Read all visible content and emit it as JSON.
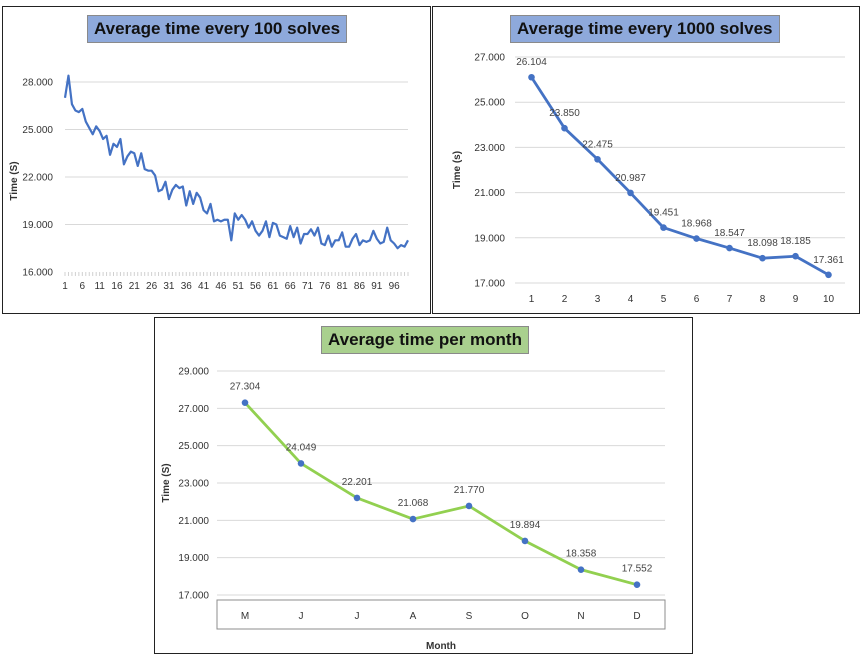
{
  "chart_data": [
    {
      "type": "line",
      "title": "Average time every 100 solves",
      "xlabel": "",
      "ylabel": "Time (S)",
      "ylim": [
        16,
        28.8
      ],
      "yticks": [
        "16.000",
        "19.000",
        "22.000",
        "25.000",
        "28.000"
      ],
      "xticks": [
        "1",
        "6",
        "11",
        "16",
        "21",
        "26",
        "31",
        "36",
        "41",
        "46",
        "51",
        "56",
        "61",
        "66",
        "71",
        "76",
        "81",
        "86",
        "91",
        "96"
      ],
      "color": "#4472c4",
      "x": [
        1,
        2,
        3,
        4,
        5,
        6,
        7,
        8,
        9,
        10,
        11,
        12,
        13,
        14,
        15,
        16,
        17,
        18,
        19,
        20,
        21,
        22,
        23,
        24,
        25,
        26,
        27,
        28,
        29,
        30,
        31,
        32,
        33,
        34,
        35,
        36,
        37,
        38,
        39,
        40,
        41,
        42,
        43,
        44,
        45,
        46,
        47,
        48,
        49,
        50,
        51,
        52,
        53,
        54,
        55,
        56,
        57,
        58,
        59,
        60,
        61,
        62,
        63,
        64,
        65,
        66,
        67,
        68,
        69,
        70,
        71,
        72,
        73,
        74,
        75,
        76,
        77,
        78,
        79,
        80,
        81,
        82,
        83,
        84,
        85,
        86,
        87,
        88,
        89,
        90,
        91,
        92,
        93,
        94,
        95,
        96,
        97,
        98,
        99,
        100
      ],
      "values": [
        27.0,
        28.4,
        26.6,
        26.2,
        26.1,
        26.3,
        25.5,
        25.1,
        24.7,
        25.2,
        24.9,
        24.4,
        24.6,
        23.4,
        24.1,
        23.9,
        24.4,
        22.8,
        23.3,
        23.6,
        23.5,
        22.7,
        23.5,
        22.5,
        22.4,
        22.4,
        22.1,
        21.1,
        21.2,
        21.7,
        20.6,
        21.2,
        21.5,
        21.3,
        21.4,
        20.2,
        21.1,
        20.3,
        21.0,
        20.7,
        19.9,
        19.7,
        20.3,
        19.2,
        19.3,
        19.2,
        19.3,
        19.3,
        18.0,
        19.7,
        19.3,
        19.6,
        19.3,
        18.8,
        19.2,
        18.6,
        18.3,
        18.6,
        19.2,
        18.2,
        19.1,
        19.0,
        18.3,
        18.2,
        18.1,
        18.9,
        18.2,
        18.8,
        17.8,
        18.4,
        18.4,
        18.7,
        18.3,
        18.8,
        17.8,
        17.7,
        18.3,
        17.6,
        18.0,
        18.0,
        18.5,
        17.6,
        17.6,
        18.1,
        18.4,
        17.7,
        18.0,
        17.9,
        18.0,
        18.6,
        18.1,
        17.8,
        17.9,
        18.8,
        18.0,
        17.8,
        17.5,
        17.7,
        17.6,
        18.0
      ]
    },
    {
      "type": "line",
      "title": "Average time every 1000 solves",
      "xlabel": "",
      "ylabel": "Time (s)",
      "ylim": [
        17,
        27
      ],
      "yticks": [
        "17.000",
        "19.000",
        "21.000",
        "23.000",
        "25.000",
        "27.000"
      ],
      "categories": [
        "1",
        "2",
        "3",
        "4",
        "5",
        "6",
        "7",
        "8",
        "9",
        "10"
      ],
      "values": [
        26.104,
        23.85,
        22.475,
        20.987,
        19.451,
        18.968,
        18.547,
        18.098,
        18.185,
        17.361
      ],
      "labels": [
        "26.104",
        "23.850",
        "22.475",
        "20.987",
        "19.451",
        "18.968",
        "18.547",
        "18.098",
        "18.185",
        "17.361"
      ],
      "color": "#4472c4"
    },
    {
      "type": "line",
      "title": "Average time per month",
      "xlabel": "Month",
      "ylabel": "Time (S)",
      "ylim": [
        17,
        29
      ],
      "yticks": [
        "17.000",
        "19.000",
        "21.000",
        "23.000",
        "25.000",
        "27.000",
        "29.000"
      ],
      "categories": [
        "M",
        "J",
        "J",
        "A",
        "S",
        "O",
        "N",
        "D"
      ],
      "values": [
        27.304,
        24.049,
        22.201,
        21.068,
        21.77,
        19.894,
        18.358,
        17.552
      ],
      "labels": [
        "27.304",
        "24.049",
        "22.201",
        "21.068",
        "21.770",
        "19.894",
        "18.358",
        "17.552"
      ],
      "color": "#92d050",
      "marker_color": "#4472c4"
    }
  ]
}
